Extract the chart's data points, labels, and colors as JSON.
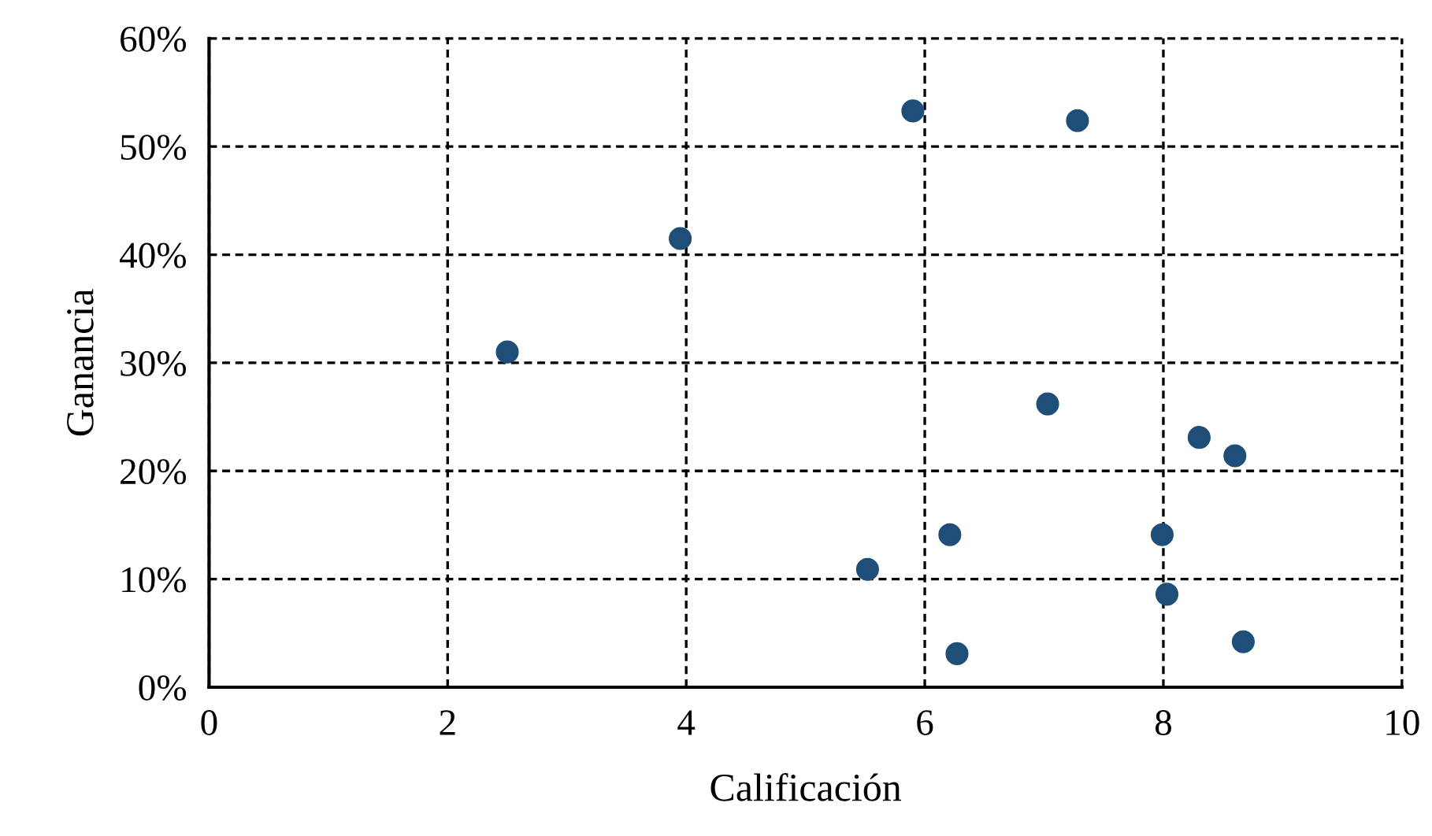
{
  "chart_data": {
    "type": "scatter",
    "xlabel": "Calificación",
    "ylabel": "Ganancia",
    "x": [
      5.9,
      7.28,
      3.95,
      2.5,
      7.03,
      8.3,
      8.6,
      6.21,
      7.99,
      5.52,
      8.03,
      6.27,
      8.67
    ],
    "series": [
      {
        "color": "#1f4e79",
        "values": [
          53.3,
          52.4,
          41.5,
          31.0,
          26.2,
          23.1,
          21.4,
          14.1,
          14.1,
          10.9,
          8.6,
          3.1,
          4.2
        ]
      }
    ],
    "xlim": [
      0,
      10
    ],
    "xticks": [
      0,
      2,
      4,
      6,
      8,
      10
    ],
    "ylim": [
      0,
      60
    ],
    "yticks": [
      {
        "value": 0,
        "label": "0%"
      },
      {
        "value": 10,
        "label": "10%"
      },
      {
        "value": 20,
        "label": "20%"
      },
      {
        "value": 30,
        "label": "30%"
      },
      {
        "value": 40,
        "label": "40%"
      },
      {
        "value": 50,
        "label": "50%"
      },
      {
        "value": 60,
        "label": "60%"
      }
    ],
    "grid": true,
    "marker": "circle",
    "legend": false
  }
}
